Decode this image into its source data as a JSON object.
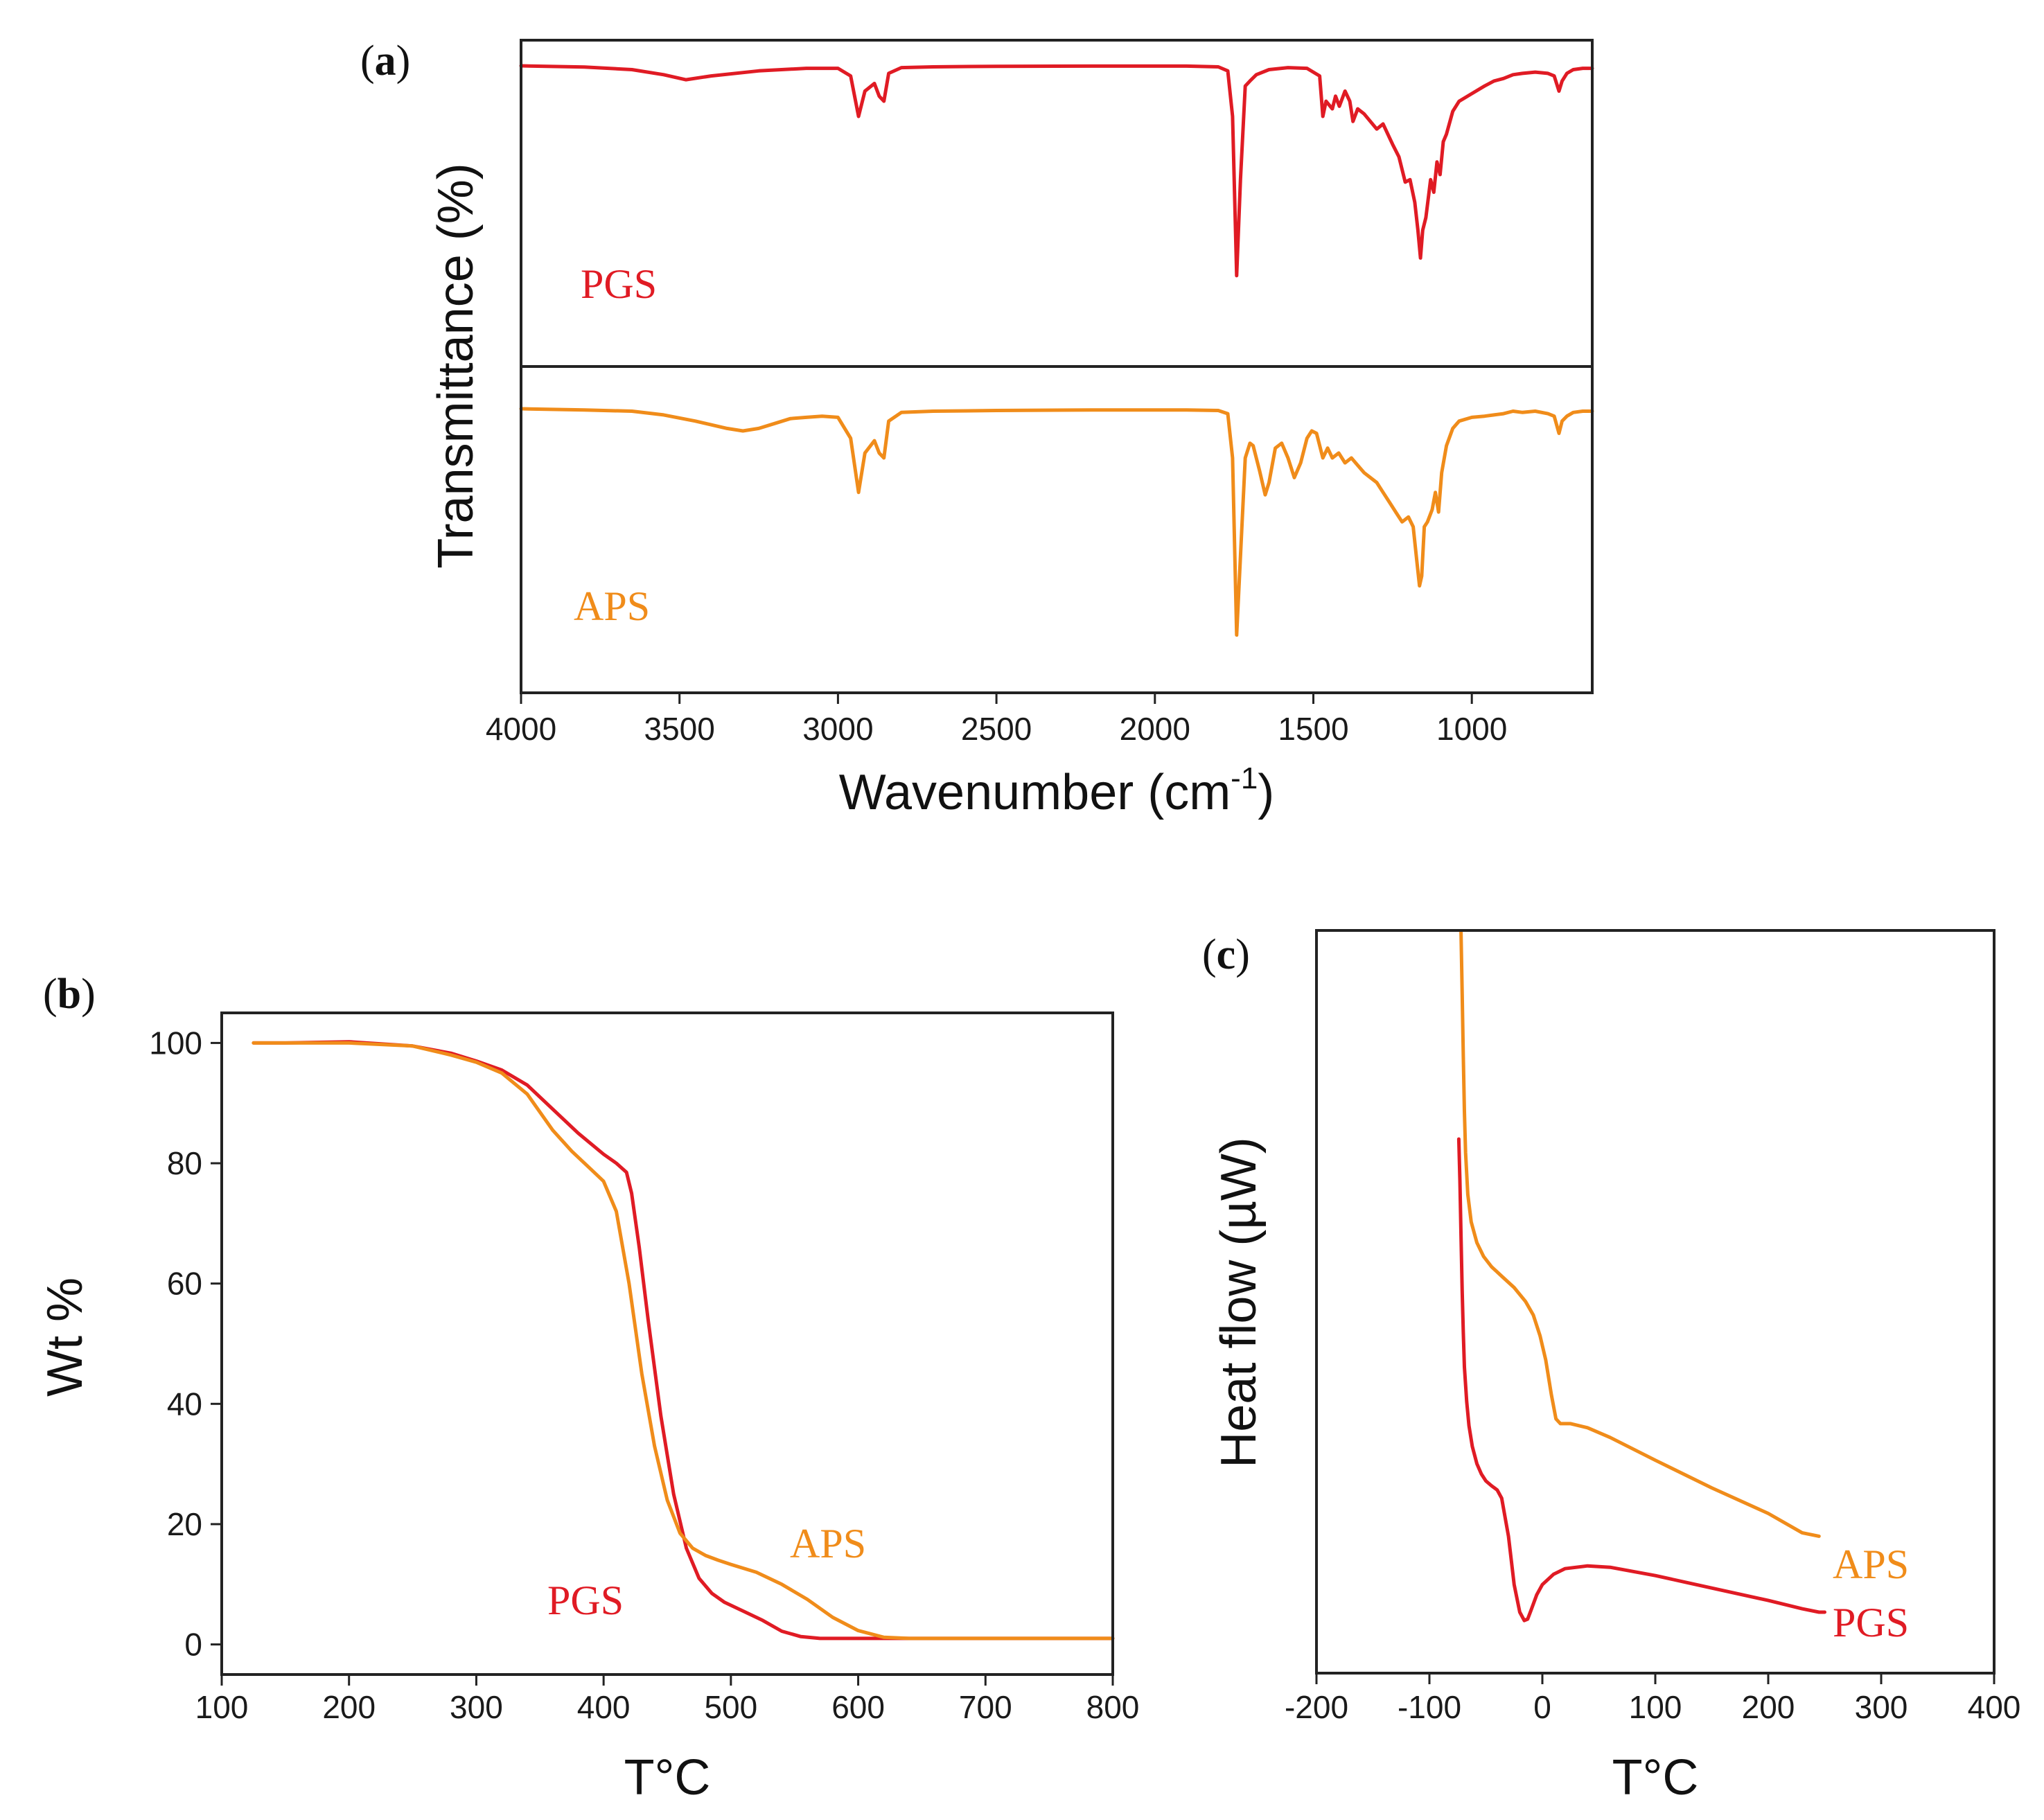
{
  "colors": {
    "pgs": "#e01b24",
    "aps": "#f08c1a",
    "axis": "#222222"
  },
  "panels": {
    "a": {
      "label_open": "(",
      "label_letter": "a",
      "label_close": ")",
      "xlabel_main": "Wavenumber (cm",
      "xlabel_sup": "-1",
      "xlabel_end": ")",
      "ylabel": "Transmittance (%)",
      "series_labels": {
        "pgs": "PGS",
        "aps": "APS"
      }
    },
    "b": {
      "label_open": "(",
      "label_letter": "b",
      "label_close": ")",
      "xlabel": "T°C",
      "ylabel": "Wt %",
      "series_labels": {
        "pgs": "PGS",
        "aps": "APS"
      }
    },
    "c": {
      "label_open": "(",
      "label_letter": "c",
      "label_close": ")",
      "xlabel": "T°C",
      "ylabel": "Heat flow (µW)",
      "series_labels": {
        "aps": "APS",
        "pgs": "PGS"
      }
    }
  },
  "chart_data": [
    {
      "id": "a",
      "type": "line",
      "title": "",
      "xlabel": "Wavenumber (cm-1)",
      "ylabel": "Transmittance (%)",
      "xlim": [
        4000,
        620
      ],
      "x_reversed": true,
      "xticks": [
        4000,
        3500,
        3000,
        2500,
        2000,
        1500,
        1000
      ],
      "xtick_labels": [
        "4000",
        "3500",
        "3000",
        "2500",
        "2000",
        "1500",
        "1000"
      ],
      "ylim": [
        0,
        100
      ],
      "stacked_offsets": true,
      "series": [
        {
          "name": "PGS",
          "color": "#e01b24",
          "band": "upper",
          "x": [
            4000,
            3800,
            3650,
            3550,
            3480,
            3400,
            3250,
            3100,
            3000,
            2960,
            2935,
            2915,
            2885,
            2870,
            2855,
            2840,
            2800,
            2700,
            2500,
            2200,
            1900,
            1800,
            1770,
            1755,
            1742,
            1730,
            1715,
            1700,
            1680,
            1640,
            1580,
            1520,
            1480,
            1470,
            1460,
            1440,
            1430,
            1418,
            1400,
            1385,
            1375,
            1360,
            1340,
            1300,
            1280,
            1250,
            1230,
            1210,
            1195,
            1180,
            1170,
            1162,
            1155,
            1145,
            1130,
            1120,
            1110,
            1100,
            1090,
            1080,
            1060,
            1040,
            1000,
            960,
            930,
            900,
            870,
            840,
            800,
            760,
            740,
            725,
            715,
            700,
            680,
            650,
            620
          ],
          "y": [
            100,
            99.5,
            98.5,
            96.5,
            94.5,
            96,
            98,
            99,
            99,
            96,
            80,
            90,
            93,
            88,
            86,
            97,
            99.3,
            99.6,
            99.8,
            99.9,
            99.9,
            99.6,
            98,
            80,
            17,
            55,
            92,
            94,
            96.5,
            98.5,
            99.3,
            99,
            96,
            80,
            86,
            83,
            88,
            84,
            90,
            86,
            78,
            83,
            81,
            75,
            77,
            69,
            64,
            54,
            55,
            46,
            35,
            24,
            35,
            40,
            55,
            50,
            62,
            57,
            70,
            73,
            82,
            86,
            89,
            92,
            94,
            95,
            96.5,
            97,
            97.5,
            97,
            96,
            90,
            94,
            97,
            98.5,
            99,
            99
          ]
        },
        {
          "name": "APS",
          "color": "#f08c1a",
          "band": "lower",
          "x": [
            4000,
            3800,
            3650,
            3550,
            3450,
            3350,
            3300,
            3250,
            3200,
            3150,
            3100,
            3050,
            3000,
            2960,
            2935,
            2915,
            2885,
            2870,
            2855,
            2840,
            2800,
            2700,
            2500,
            2200,
            1900,
            1800,
            1770,
            1755,
            1742,
            1730,
            1715,
            1700,
            1690,
            1670,
            1652,
            1640,
            1620,
            1600,
            1580,
            1560,
            1540,
            1520,
            1505,
            1490,
            1470,
            1455,
            1440,
            1420,
            1400,
            1380,
            1360,
            1340,
            1320,
            1300,
            1280,
            1260,
            1240,
            1220,
            1200,
            1185,
            1175,
            1165,
            1158,
            1150,
            1140,
            1125,
            1115,
            1105,
            1095,
            1080,
            1060,
            1040,
            1000,
            960,
            930,
            900,
            870,
            840,
            800,
            760,
            740,
            725,
            715,
            700,
            680,
            650,
            620
          ],
          "y": [
            100,
            99.5,
            99,
            97.5,
            95,
            92,
            91,
            92,
            94,
            96,
            96.5,
            97,
            96.5,
            88,
            66,
            82,
            87,
            82,
            80,
            95,
            98.5,
            99,
            99.3,
            99.5,
            99.5,
            99.3,
            98,
            80,
            8,
            40,
            80,
            86,
            85,
            75,
            65,
            70,
            84,
            86,
            80,
            72,
            78,
            88,
            91,
            90,
            80,
            84,
            80,
            82,
            78,
            80,
            77,
            74,
            72,
            70,
            66,
            62,
            58,
            54,
            56,
            52,
            40,
            28,
            32,
            52,
            54,
            59,
            66,
            58,
            74,
            85,
            92,
            95,
            96.5,
            97,
            97.5,
            98,
            99,
            98.5,
            99,
            98,
            97,
            90,
            95,
            97,
            98.5,
            99,
            99
          ]
        }
      ],
      "series_annotations": [
        "PGS",
        "APS"
      ]
    },
    {
      "id": "b",
      "type": "line",
      "title": "",
      "xlabel": "T°C",
      "ylabel": "Wt %",
      "xlim": [
        100,
        800
      ],
      "ylim": [
        -5,
        105
      ],
      "xticks": [
        100,
        200,
        300,
        400,
        500,
        600,
        700,
        800
      ],
      "xtick_labels": [
        "100",
        "200",
        "300",
        "400",
        "500",
        "600",
        "700",
        "800"
      ],
      "yticks": [
        0,
        20,
        40,
        60,
        80,
        100
      ],
      "ytick_labels": [
        "0",
        "20",
        "40",
        "60",
        "80",
        "100"
      ],
      "series": [
        {
          "name": "PGS",
          "color": "#e01b24",
          "x": [
            125,
            150,
            200,
            250,
            280,
            300,
            320,
            340,
            360,
            380,
            400,
            410,
            418,
            422,
            428,
            435,
            445,
            455,
            465,
            475,
            485,
            495,
            510,
            525,
            540,
            555,
            570,
            600,
            650,
            700,
            750,
            800
          ],
          "y": [
            100,
            100,
            100.2,
            99.5,
            98.3,
            97,
            95.5,
            93,
            89,
            85,
            81.5,
            80,
            78.5,
            75,
            66,
            54,
            38,
            25,
            16,
            11,
            8.5,
            7,
            5.5,
            4,
            2.2,
            1.3,
            1,
            1,
            1,
            1,
            1,
            1
          ]
        },
        {
          "name": "APS",
          "color": "#f08c1a",
          "x": [
            125,
            150,
            200,
            250,
            280,
            300,
            320,
            340,
            360,
            375,
            390,
            400,
            410,
            420,
            430,
            440,
            450,
            460,
            470,
            480,
            490,
            500,
            520,
            540,
            560,
            580,
            600,
            620,
            640,
            700,
            800
          ],
          "y": [
            100,
            100,
            100,
            99.5,
            98,
            96.8,
            95,
            91.5,
            85.5,
            82,
            79,
            77,
            72,
            60,
            45,
            33,
            24,
            18.5,
            16,
            14.8,
            14,
            13.3,
            12,
            10,
            7.5,
            4.5,
            2.3,
            1.2,
            1,
            1,
            1
          ]
        }
      ],
      "series_annotations": [
        "APS",
        "PGS"
      ]
    },
    {
      "id": "c",
      "type": "line",
      "title": "",
      "xlabel": "T°C",
      "ylabel": "Heat flow (µW)",
      "xlim": [
        -200,
        400
      ],
      "ylim": [
        0,
        100
      ],
      "xticks": [
        -200,
        -100,
        0,
        100,
        200,
        300,
        400
      ],
      "xtick_labels": [
        "-200",
        "-100",
        "0",
        "100",
        "200",
        "300",
        "400"
      ],
      "series": [
        {
          "name": "APS",
          "color": "#f08c1a",
          "x": [
            -72,
            -71,
            -70,
            -69,
            -68,
            -66,
            -63,
            -58,
            -52,
            -45,
            -35,
            -25,
            -15,
            -8,
            -2,
            3,
            8,
            12,
            16,
            25,
            40,
            60,
            100,
            150,
            200,
            230,
            245
          ],
          "y": [
            100,
            91,
            82,
            74,
            68,
            62,
            58,
            55,
            53,
            51.5,
            50,
            48.5,
            46.5,
            44.5,
            41.5,
            38,
            33,
            29.5,
            28.8,
            28.8,
            28.2,
            26.8,
            23.5,
            19.5,
            15.8,
            13,
            12.5
          ]
        },
        {
          "name": "PGS",
          "color": "#e01b24",
          "x": [
            -74,
            -73,
            -72,
            -71,
            -70,
            -69,
            -67,
            -65,
            -62,
            -58,
            -54,
            -50,
            -45,
            -40,
            -36,
            -30,
            -25,
            -20,
            -16,
            -13,
            -10,
            -5,
            0,
            10,
            20,
            40,
            60,
            100,
            150,
            200,
            230,
            245,
            250
          ],
          "y": [
            70,
            64,
            56,
            48,
            42,
            37,
            32,
            28.5,
            25.5,
            23,
            21.5,
            20.5,
            19.8,
            19.2,
            18,
            12.5,
            5.5,
            1.5,
            0.3,
            0.5,
            1.8,
            4,
            5.5,
            7,
            7.8,
            8.2,
            8,
            6.8,
            5,
            3.2,
            2,
            1.5,
            1.5
          ]
        }
      ],
      "series_annotations": [
        "APS",
        "PGS"
      ]
    }
  ]
}
